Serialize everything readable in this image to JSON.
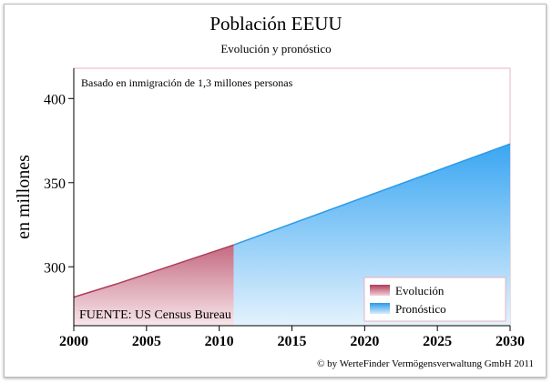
{
  "chart_data": {
    "type": "area",
    "title": "Población EEUU",
    "subtitle": "Evolución y pronóstico",
    "annotation_top": "Basado en inmigración de 1,3 millones personas",
    "annotation_bottom": "FUENTE: US Census Bureau",
    "ylabel": "en millones",
    "xlabel": "",
    "xlim": [
      2000,
      2030
    ],
    "ylim": [
      265,
      418
    ],
    "x_ticks": [
      "2000",
      "2005",
      "2010",
      "2015",
      "2020",
      "2025",
      "2030"
    ],
    "y_ticks": [
      "300",
      "350",
      "400"
    ],
    "legend_position": "bottom-right",
    "grid": false,
    "series": [
      {
        "name": "Evolución",
        "color": "#b03a58",
        "x": [
          2000,
          2003,
          2011
        ],
        "values": [
          282,
          290,
          313
        ]
      },
      {
        "name": "Pronóstico",
        "color": "#2b9be8",
        "x": [
          2011,
          2030
        ],
        "values": [
          313,
          373
        ]
      }
    ]
  },
  "credit": "© by WerteFinder Vermögensverwaltung GmbH 2011"
}
